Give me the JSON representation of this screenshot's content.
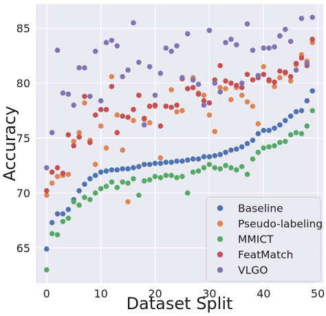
{
  "chart_data": {
    "type": "scatter",
    "title": "",
    "xlabel": "Dataset Split",
    "ylabel": "Accuracy",
    "xlim": [
      -2,
      51
    ],
    "ylim": [
      61.8,
      87.2
    ],
    "xticks": [
      0,
      10,
      20,
      30,
      40,
      50
    ],
    "yticks": [
      65,
      70,
      75,
      80,
      85
    ],
    "grid": true,
    "background": "#eaeaf2",
    "legend_position": "lower-right",
    "series": [
      {
        "name": "Baseline",
        "color": "#4c72b0",
        "x": [
          0,
          1,
          2,
          3,
          4,
          5,
          6,
          7,
          8,
          9,
          10,
          11,
          12,
          13,
          14,
          15,
          16,
          17,
          18,
          19,
          20,
          21,
          22,
          23,
          24,
          25,
          26,
          27,
          28,
          29,
          30,
          31,
          32,
          33,
          34,
          35,
          36,
          37,
          38,
          39,
          40,
          41,
          42,
          43,
          44,
          45,
          46,
          47,
          48,
          49
        ],
        "y": [
          64.9,
          67.3,
          68.1,
          68.1,
          68.5,
          69.4,
          70.2,
          70.8,
          71.3,
          71.6,
          71.9,
          72.0,
          72.1,
          72.1,
          72.2,
          72.2,
          72.3,
          72.4,
          72.6,
          72.6,
          72.7,
          72.7,
          72.8,
          72.8,
          72.9,
          72.9,
          73.0,
          73.1,
          73.1,
          73.3,
          73.3,
          73.4,
          73.5,
          73.7,
          73.9,
          74.0,
          74.2,
          74.5,
          74.8,
          75.4,
          75.7,
          75.7,
          75.9,
          76.2,
          76.6,
          77.0,
          77.4,
          77.5,
          78.4,
          79.3
        ]
      },
      {
        "name": "Pseudo-labeling",
        "color": "#dd8452",
        "x": [
          0,
          1,
          2,
          3,
          4,
          5,
          6,
          7,
          8,
          9,
          10,
          11,
          12,
          13,
          14,
          15,
          16,
          17,
          18,
          19,
          20,
          21,
          22,
          23,
          24,
          25,
          26,
          27,
          28,
          29,
          30,
          31,
          32,
          33,
          34,
          35,
          36,
          37,
          38,
          39,
          40,
          41,
          42,
          43,
          44,
          45,
          46,
          47,
          48,
          49
        ],
        "y": [
          69.8,
          70.9,
          71.5,
          71.6,
          71.7,
          74.7,
          75.5,
          78.2,
          74.8,
          72.6,
          76.1,
          74.1,
          80.6,
          77.1,
          73.9,
          69.2,
          76.6,
          78.9,
          76.7,
          76.4,
          77.9,
          73.2,
          77.9,
          79.4,
          77.4,
          77.5,
          79.5,
          80.5,
          79.1,
          78.9,
          77.1,
          75.6,
          79.6,
          79.5,
          78.5,
          79.6,
          78.9,
          78.3,
          77.9,
          76.3,
          81.5,
          80.2,
          79.7,
          80.5,
          80.9,
          80.2,
          81.7,
          82.6,
          82.0,
          83.7
        ]
      },
      {
        "name": "MMICT",
        "color": "#55a868",
        "x": [
          0,
          1,
          2,
          3,
          4,
          5,
          6,
          7,
          8,
          9,
          10,
          11,
          12,
          13,
          14,
          15,
          16,
          17,
          18,
          19,
          20,
          21,
          22,
          23,
          24,
          25,
          26,
          27,
          28,
          29,
          30,
          31,
          32,
          33,
          34,
          35,
          36,
          37,
          38,
          39,
          40,
          41,
          42,
          43,
          44,
          45,
          46,
          47,
          48,
          49
        ],
        "y": [
          63.0,
          66.3,
          66.2,
          67.4,
          67.7,
          69.2,
          68.9,
          69.6,
          69.4,
          70.0,
          70.4,
          70.6,
          71.0,
          70.5,
          71.0,
          70.9,
          71.3,
          69.8,
          71.1,
          71.2,
          71.5,
          71.4,
          71.6,
          71.6,
          71.4,
          71.5,
          70.0,
          71.9,
          72.0,
          72.3,
          72.6,
          72.3,
          72.2,
          72.5,
          72.3,
          72.1,
          72.4,
          71.7,
          73.1,
          73.7,
          74.1,
          74.2,
          74.3,
          74.6,
          74.7,
          75.3,
          75.5,
          75.4,
          76.1,
          77.5
        ]
      },
      {
        "name": "FeatMatch",
        "color": "#c44e52",
        "x": [
          0,
          1,
          2,
          3,
          4,
          5,
          6,
          7,
          8,
          9,
          10,
          11,
          12,
          13,
          14,
          15,
          16,
          17,
          18,
          19,
          20,
          21,
          22,
          23,
          24,
          25,
          26,
          27,
          28,
          29,
          30,
          31,
          32,
          33,
          34,
          35,
          36,
          37,
          38,
          39,
          40,
          41,
          42,
          43,
          44,
          45,
          46,
          47,
          48,
          49
        ],
        "y": [
          70.2,
          71.9,
          72.3,
          71.8,
          75.3,
          74.3,
          75.1,
          78.8,
          74.6,
          77.1,
          77.6,
          77.6,
          79.7,
          75.5,
          77.0,
          76.9,
          77.6,
          78.9,
          76.8,
          77.9,
          78.0,
          76.1,
          77.9,
          77.8,
          78.0,
          80.4,
          79.5,
          79.6,
          79.0,
          78.4,
          78.2,
          80.3,
          81.6,
          80.2,
          80.0,
          79.8,
          79.6,
          80.8,
          80.3,
          80.5,
          80.8,
          80.3,
          80.1,
          81.1,
          81.0,
          80.6,
          81.8,
          82.3,
          81.6,
          84.0
        ]
      },
      {
        "name": "VLGO",
        "color": "#8172b3",
        "x": [
          0,
          1,
          2,
          3,
          4,
          5,
          6,
          7,
          8,
          9,
          10,
          11,
          12,
          13,
          14,
          15,
          16,
          17,
          18,
          19,
          20,
          21,
          22,
          23,
          24,
          25,
          26,
          27,
          28,
          29,
          30,
          31,
          32,
          33,
          34,
          35,
          36,
          37,
          38,
          39,
          40,
          41,
          42,
          43,
          44,
          45,
          46,
          47,
          48,
          49
        ],
        "y": [
          72.3,
          75.5,
          83.0,
          79.1,
          79.0,
          78.0,
          81.4,
          81.4,
          78.8,
          82.9,
          78.4,
          83.7,
          83.9,
          83.4,
          80.6,
          81.2,
          85.5,
          81.9,
          76.2,
          81.5,
          78.9,
          80.9,
          83.2,
          82.9,
          83.4,
          80.5,
          84.5,
          80.3,
          79.9,
          78.0,
          84.8,
          80.0,
          79.2,
          83.7,
          84.0,
          83.5,
          80.0,
          85.4,
          83.0,
          80.7,
          83.2,
          83.2,
          83.3,
          84.3,
          84.9,
          83.8,
          81.2,
          85.9,
          81.8,
          86.0
        ]
      }
    ]
  }
}
